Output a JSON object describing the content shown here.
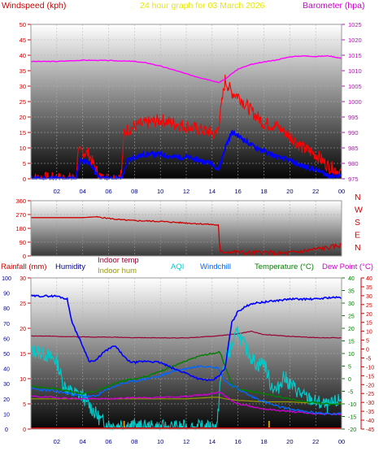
{
  "chart_data": [
    {
      "type": "line",
      "title": "24 hour graph for 03 March 2026",
      "left_axis_label": "Windspeed (kph)",
      "right_axis_label": "Barometer (hpa)",
      "x_ticks": [
        "02",
        "04",
        "06",
        "08",
        "10",
        "12",
        "14",
        "16",
        "18",
        "20",
        "22",
        "00"
      ],
      "xlim": [
        0,
        24
      ],
      "ylim_left": [
        0,
        50
      ],
      "ylim_right": [
        975,
        1025
      ],
      "y_ticks_left": [
        0,
        5,
        10,
        15,
        20,
        25,
        30,
        35,
        40,
        45,
        50
      ],
      "y_ticks_right": [
        975,
        980,
        985,
        990,
        995,
        1000,
        1005,
        1010,
        1015,
        1020,
        1025
      ],
      "series": [
        {
          "key": "gust",
          "color": "#ff0000",
          "axis": "left",
          "x": [
            0,
            2.5,
            3.5,
            3.6,
            4,
            4.5,
            5,
            5.4,
            6,
            6.5,
            7,
            7.2,
            7.5,
            8,
            9,
            10,
            11,
            12,
            13,
            14,
            14.3,
            14.6,
            15,
            15.5,
            16,
            17,
            18,
            19,
            20,
            21,
            22,
            23,
            24
          ],
          "y": [
            0,
            0,
            0,
            8,
            9,
            8,
            3,
            0,
            0,
            0,
            2,
            15,
            16,
            17,
            18,
            19,
            18,
            17,
            16,
            15,
            14,
            20,
            32,
            28,
            27,
            22,
            18,
            17,
            14,
            10,
            8,
            4,
            2
          ]
        },
        {
          "key": "avg",
          "color": "#0000ff",
          "axis": "left",
          "x": [
            0,
            3.5,
            3.7,
            4,
            4.5,
            5,
            5.4,
            6,
            7,
            7.5,
            8,
            9,
            10,
            11,
            12,
            13,
            14,
            14.5,
            15,
            15.5,
            16,
            17,
            18,
            19,
            20,
            21,
            22,
            23,
            24
          ],
          "y": [
            0,
            0,
            5,
            6,
            5,
            2,
            0,
            0,
            0,
            6,
            7,
            8,
            8,
            7,
            7,
            6,
            5,
            3,
            10,
            15,
            14,
            11,
            9,
            7,
            6,
            4,
            3,
            1,
            1
          ]
        },
        {
          "key": "barometer",
          "color": "#ff00ff",
          "axis": "right",
          "x": [
            0,
            2,
            4,
            6,
            8,
            9,
            10,
            11,
            12,
            13,
            14,
            14.5,
            15,
            15.5,
            16,
            17,
            18,
            19,
            20,
            21,
            22,
            23,
            24
          ],
          "y": [
            1013,
            1013,
            1013.4,
            1013.3,
            1013,
            1012.5,
            1011.5,
            1010.3,
            1009,
            1007.8,
            1006.8,
            1006.2,
            1007.2,
            1009,
            1010.5,
            1012,
            1012.8,
            1013.5,
            1014.5,
            1014.8,
            1014.6,
            1014.8,
            1014
          ]
        }
      ]
    },
    {
      "type": "line",
      "title": "",
      "ylim": [
        0,
        360
      ],
      "y_ticks": [
        0,
        90,
        180,
        270,
        360
      ],
      "compass_labels": [
        "N",
        "W",
        "S",
        "E",
        "N"
      ],
      "series": [
        {
          "key": "direction",
          "color": "#cc0000",
          "x": [
            0,
            4,
            5,
            6,
            7,
            8,
            9,
            10,
            11,
            12,
            13,
            14,
            14.5,
            14.6,
            15,
            16,
            17,
            18,
            19,
            20,
            21,
            22,
            23,
            24
          ],
          "y": [
            250,
            250,
            255,
            245,
            235,
            230,
            228,
            225,
            220,
            215,
            210,
            205,
            200,
            20,
            30,
            25,
            18,
            25,
            15,
            20,
            30,
            45,
            55,
            70
          ]
        }
      ]
    },
    {
      "type": "line",
      "title": "",
      "legend": [
        "Rainfall (mm)",
        "Humidity",
        "Indoor temp",
        "Indoor hum",
        "AQI",
        "Windchill",
        "Temperature (°C)",
        "Dew Point (°C)"
      ],
      "x_ticks": [
        "02",
        "04",
        "06",
        "08",
        "10",
        "12",
        "14",
        "16",
        "18",
        "20",
        "22",
        "00"
      ],
      "xlim": [
        0,
        24
      ],
      "rain_axis": [
        0,
        5,
        10,
        15,
        20,
        25,
        30
      ],
      "hum_axis": [
        0,
        10,
        20,
        30,
        40,
        50,
        60,
        70,
        80,
        90,
        100
      ],
      "temp_axis": [
        -20,
        -15,
        -10,
        -5,
        0,
        5,
        10,
        15,
        20,
        25,
        30,
        35,
        40
      ],
      "dew_axis": [
        -45,
        -40,
        -35,
        -30,
        -25,
        -20,
        -15,
        -10,
        -5,
        0,
        5,
        10,
        15,
        20,
        25,
        30,
        35,
        40
      ],
      "series": [
        {
          "key": "indoor_temp",
          "color": "#990033",
          "axis": "temp",
          "x": [
            0,
            2,
            4,
            6,
            8,
            10,
            12,
            14,
            16,
            17,
            18,
            20,
            22,
            24
          ],
          "y": [
            17,
            16.8,
            16.6,
            16.5,
            16.3,
            16.2,
            16.2,
            16.8,
            17.8,
            18.8,
            17.5,
            16.8,
            16.3,
            16.2
          ]
        },
        {
          "key": "humidity",
          "color": "#0000ff",
          "axis": "hum",
          "x": [
            0,
            2,
            2.8,
            3.2,
            4,
            4.5,
            5,
            5.5,
            6,
            6.5,
            7,
            7.5,
            8,
            9,
            10,
            11,
            12,
            13,
            14,
            14.5,
            15,
            15.5,
            16,
            17,
            18,
            19,
            20,
            21,
            22,
            23,
            24
          ],
          "y": [
            88,
            88,
            86,
            70,
            55,
            45,
            45,
            50,
            53,
            55,
            50,
            45,
            44,
            45,
            44,
            40,
            37,
            33,
            32,
            35,
            40,
            70,
            78,
            83,
            84,
            85,
            86,
            86,
            86,
            87,
            87
          ]
        },
        {
          "key": "temperature",
          "color": "#008000",
          "axis": "temp",
          "x": [
            0,
            1,
            2,
            3,
            4,
            5,
            6,
            7,
            8,
            9,
            10,
            11,
            12,
            13,
            14,
            14.6,
            15,
            15.5,
            16,
            17,
            18,
            19,
            20,
            21,
            22,
            23,
            24
          ],
          "y": [
            -3,
            -3.5,
            -4,
            -5,
            -6,
            -5,
            -3,
            -1,
            0,
            1,
            3,
            5,
            7,
            9,
            10,
            10.5,
            5,
            -2,
            -4,
            -5,
            -6,
            -7,
            -8,
            -9,
            -9.5,
            -10,
            -10
          ]
        },
        {
          "key": "windchill",
          "color": "#0066ff",
          "axis": "temp",
          "x": [
            0,
            2,
            4,
            5,
            6,
            7,
            8,
            9,
            10,
            11,
            12,
            13,
            14,
            14.5,
            15,
            16,
            17,
            18,
            19,
            20,
            21,
            22,
            23,
            24
          ],
          "y": [
            -4,
            -5,
            -7,
            -7,
            -4,
            -2,
            -1,
            0,
            1,
            3,
            4,
            5,
            5,
            4,
            -1,
            -4,
            -7,
            -9,
            -11,
            -12,
            -13,
            -13.5,
            -14,
            -14
          ]
        },
        {
          "key": "dew_point",
          "color": "#cc00cc",
          "axis": "temp",
          "x": [
            0,
            2,
            4,
            6,
            8,
            10,
            12,
            14,
            14.5,
            15,
            16,
            17,
            18,
            19,
            20,
            21,
            22,
            23,
            24
          ],
          "y": [
            -7,
            -7.5,
            -8,
            -8,
            -7.5,
            -7.5,
            -7,
            -6,
            -5,
            -7,
            -10,
            -11,
            -12,
            -12.5,
            -13,
            -13.5,
            -14,
            -14,
            -14
          ]
        },
        {
          "key": "indoor_hum",
          "color": "#999900",
          "axis": "hum",
          "x": [
            0,
            2,
            4,
            6,
            8,
            10,
            12,
            14,
            14.5,
            15,
            16,
            18,
            20,
            22,
            24
          ],
          "y": [
            20,
            20,
            20,
            20,
            20,
            20,
            20,
            21,
            21,
            20,
            19,
            18,
            18,
            17,
            17
          ]
        },
        {
          "key": "aqi",
          "color": "#00cccc",
          "axis": "hum",
          "x": [
            0,
            1,
            2,
            2.5,
            3,
            4,
            5,
            5.5,
            6,
            6.5,
            7,
            8,
            9,
            10,
            11,
            12,
            13,
            14,
            14.4,
            14.6,
            15,
            15.5,
            16,
            16.5,
            17,
            17.5,
            18,
            18.5,
            19,
            19.5,
            20,
            21,
            22,
            23,
            24
          ],
          "y": [
            52,
            50,
            45,
            30,
            25,
            22,
            10,
            5,
            3,
            2,
            3,
            2,
            1,
            1,
            1,
            1,
            1,
            1,
            2,
            30,
            45,
            55,
            65,
            55,
            48,
            42,
            45,
            30,
            25,
            35,
            30,
            22,
            18,
            15,
            20
          ]
        }
      ],
      "rain_ticks_hours": [
        7.2,
        18.4
      ]
    }
  ]
}
